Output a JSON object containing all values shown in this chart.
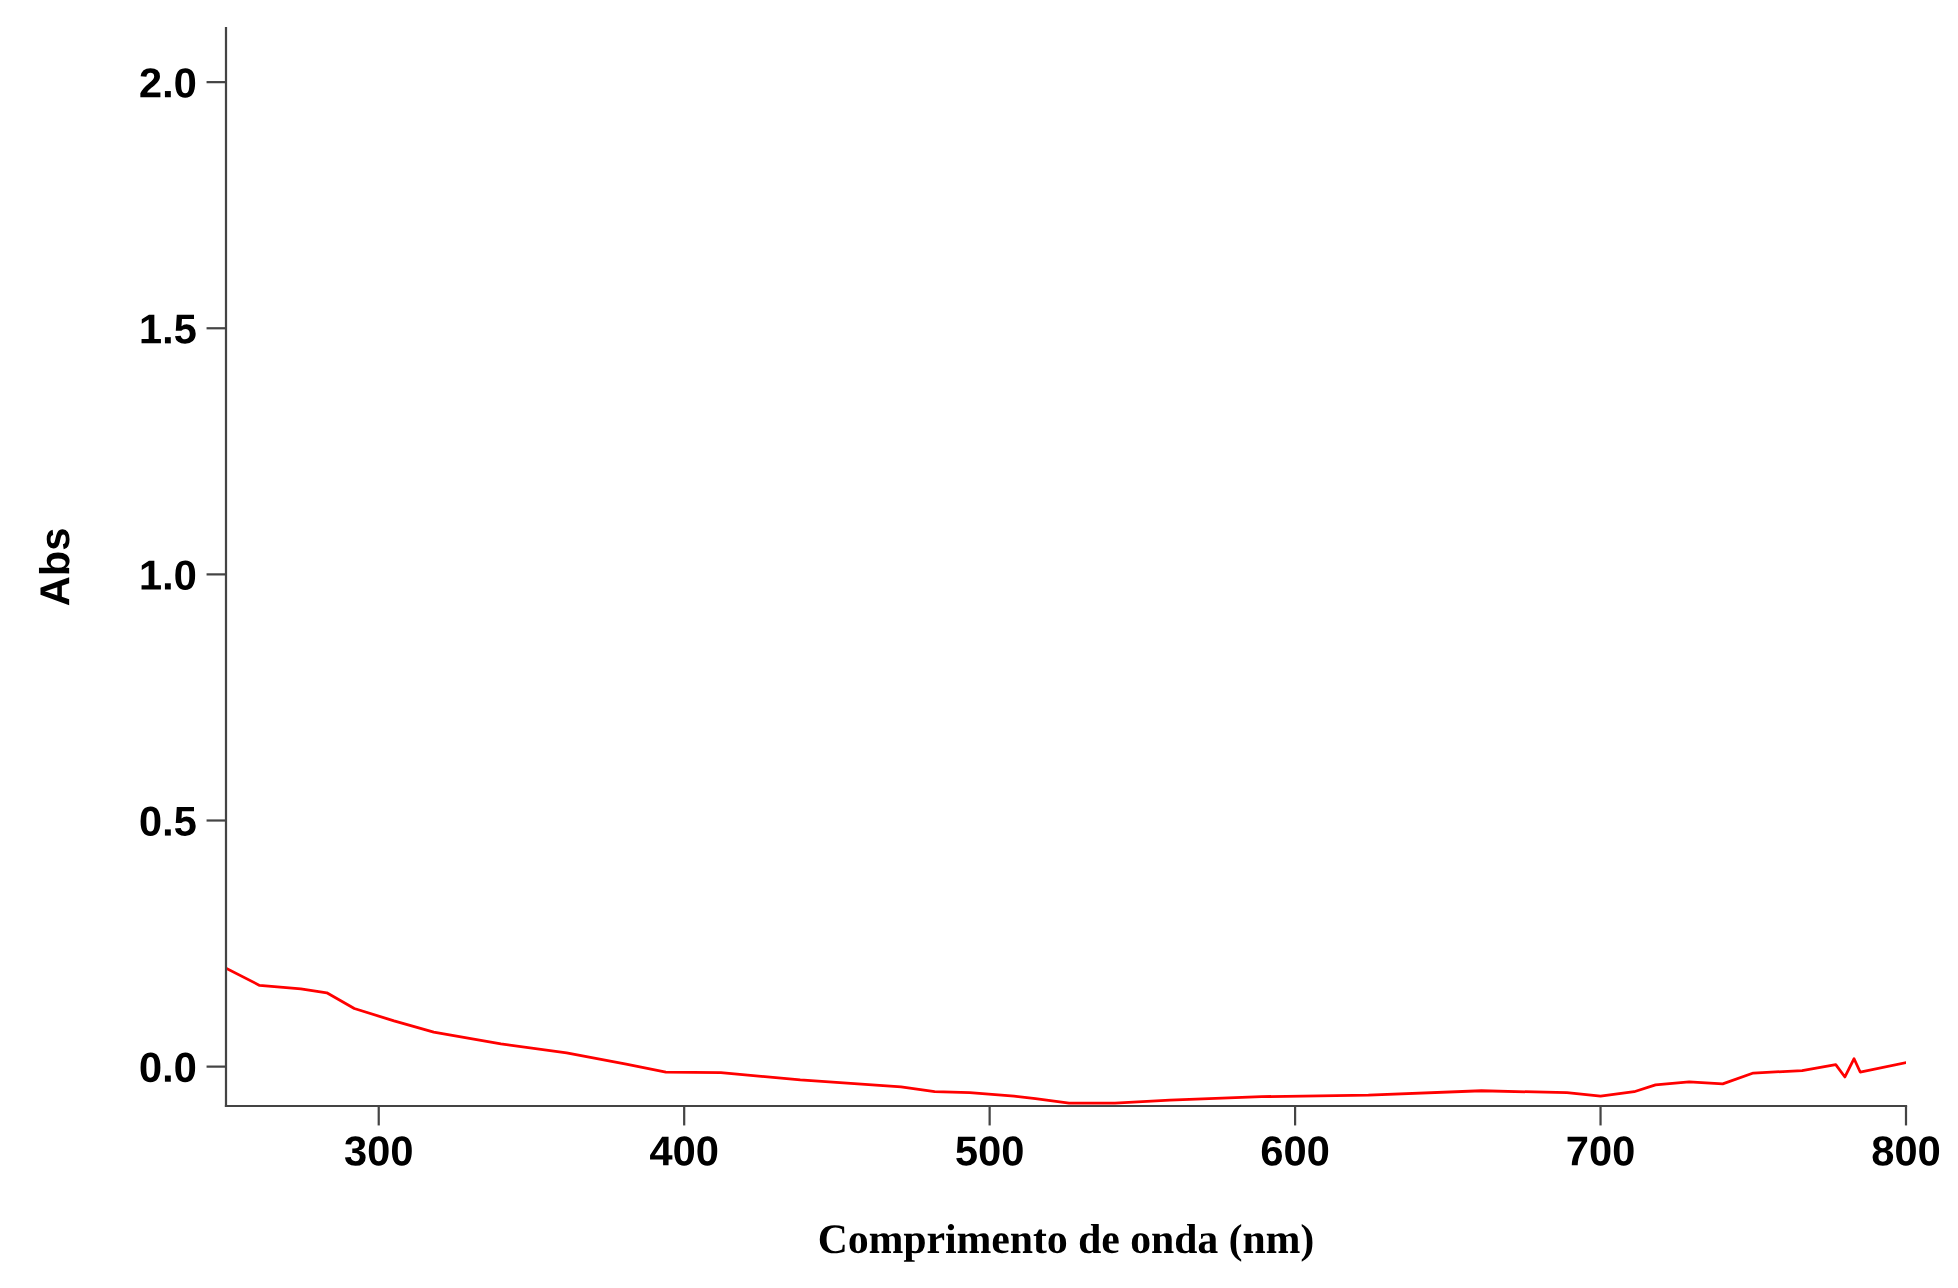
{
  "chart_data": {
    "type": "line",
    "xlabel": "Comprimento de onda (nm)",
    "ylabel": "Abs",
    "xlim": [
      250,
      800
    ],
    "ylim": [
      -0.08,
      2.11
    ],
    "xticks": [
      300,
      400,
      500,
      600,
      700,
      800
    ],
    "yticks": [
      {
        "value": 0,
        "label": "0.0"
      },
      {
        "value": 0.5,
        "label": "0.5"
      },
      {
        "value": 1,
        "label": "1.0"
      },
      {
        "value": 1.5,
        "label": "1.5"
      },
      {
        "value": 2,
        "label": "2.0"
      }
    ],
    "grid": false,
    "legend": false,
    "marker": "none",
    "line_style": "solid",
    "series": [
      {
        "color": "#ff0000",
        "x": [
          250,
          261,
          274.5,
          283,
          292,
          305,
          318,
          340,
          361.5,
          381,
          394,
          412,
          438,
          471,
          482,
          493.5,
          508,
          515,
          526,
          541,
          559,
          589,
          624,
          661,
          689,
          700,
          711,
          718,
          729,
          740,
          750,
          766,
          777,
          780,
          783,
          785,
          800
        ],
        "values": [
          0.2,
          0.165,
          0.158,
          0.15,
          0.118,
          0.093,
          0.07,
          0.046,
          0.028,
          0.005,
          -0.011,
          -0.012,
          -0.027,
          -0.041,
          -0.051,
          -0.053,
          -0.06,
          -0.065,
          -0.074,
          -0.074,
          -0.068,
          -0.061,
          -0.058,
          -0.049,
          -0.053,
          -0.06,
          -0.051,
          -0.037,
          -0.031,
          -0.035,
          -0.013,
          -0.008,
          0.004,
          -0.021,
          0.016,
          -0.011,
          0.008
        ]
      }
    ]
  }
}
